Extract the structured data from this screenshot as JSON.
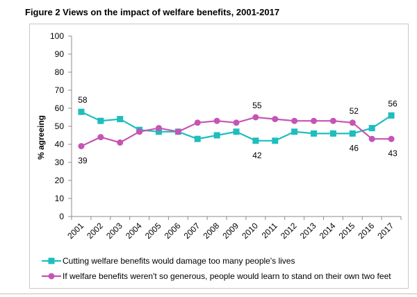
{
  "title": "Figure 2 Views on the impact of welfare benefits, 2001-2017",
  "chart_data": {
    "type": "line",
    "x": [
      "2001",
      "2002",
      "2003",
      "2004",
      "2005",
      "2006",
      "2007",
      "2008",
      "2009",
      "2010",
      "2011",
      "2012",
      "2013",
      "2014",
      "2015",
      "2016",
      "2017"
    ],
    "ylabel": "% agreeing",
    "xlabel": "",
    "ylim": [
      0,
      100
    ],
    "yticks": [
      0,
      10,
      20,
      30,
      40,
      50,
      60,
      70,
      80,
      90,
      100
    ],
    "grid": false,
    "legend_position": "bottom",
    "series": [
      {
        "name": "Cutting welfare benefits would damage too many people's lives",
        "color": "#1fbdbd",
        "marker": "square",
        "values": [
          58,
          53,
          54,
          48,
          47,
          47,
          43,
          45,
          47,
          42,
          42,
          47,
          46,
          46,
          46,
          49,
          56
        ]
      },
      {
        "name": "If welfare benefits weren't so generous, people would learn to stand on their own two feet",
        "color": "#c554b4",
        "marker": "circle",
        "values": [
          39,
          44,
          41,
          47,
          49,
          47,
          52,
          53,
          52,
          55,
          54,
          53,
          53,
          53,
          52,
          43,
          43
        ]
      }
    ],
    "annotations": [
      {
        "text": "58",
        "series": 0,
        "index": 0,
        "where": "above"
      },
      {
        "text": "39",
        "series": 1,
        "index": 0,
        "where": "below"
      },
      {
        "text": "55",
        "series": 1,
        "index": 9,
        "where": "above"
      },
      {
        "text": "42",
        "series": 0,
        "index": 9,
        "where": "below"
      },
      {
        "text": "52",
        "series": 1,
        "index": 14,
        "where": "above"
      },
      {
        "text": "46",
        "series": 0,
        "index": 14,
        "where": "below"
      },
      {
        "text": "56",
        "series": 0,
        "index": 16,
        "where": "above"
      },
      {
        "text": "43",
        "series": 1,
        "index": 16,
        "where": "below"
      }
    ]
  }
}
